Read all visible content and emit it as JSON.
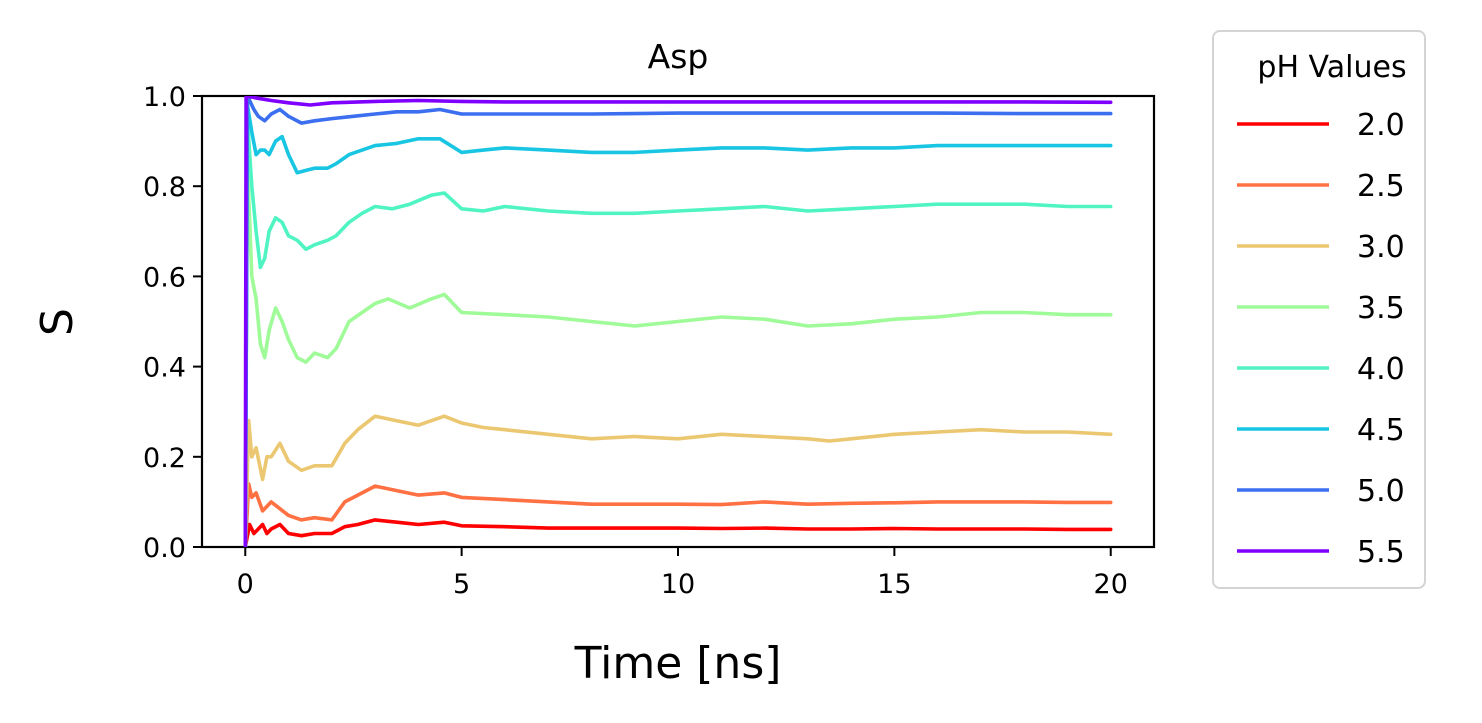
{
  "chart_data": {
    "type": "line",
    "title": "Asp",
    "xlabel": "Time [ns]",
    "ylabel": "S",
    "xlim": [
      -1,
      21
    ],
    "ylim": [
      0.0,
      1.0
    ],
    "xticks": [
      0,
      5,
      10,
      15,
      20
    ],
    "yticks": [
      0.0,
      0.2,
      0.4,
      0.6,
      0.8,
      1.0
    ],
    "xtick_labels": [
      "0",
      "5",
      "10",
      "15",
      "20"
    ],
    "ytick_labels": [
      "0.0",
      "0.2",
      "0.4",
      "0.6",
      "0.8",
      "1.0"
    ],
    "grid": false,
    "legend": {
      "title": "pH Values",
      "placement": "outside-right"
    },
    "series": [
      {
        "name": "2.0",
        "color": "#ff0000",
        "x": [
          0,
          0.1,
          0.2,
          0.3,
          0.4,
          0.5,
          0.6,
          0.8,
          1.0,
          1.3,
          1.6,
          2.0,
          2.3,
          2.6,
          3.0,
          3.5,
          4.0,
          4.6,
          5.0,
          6.0,
          7.0,
          8.0,
          9.0,
          10.0,
          11.0,
          12.0,
          13.0,
          14.0,
          15.0,
          16.0,
          17.0,
          18.0,
          19.0,
          20.0
        ],
        "y": [
          0.0,
          0.05,
          0.03,
          0.04,
          0.05,
          0.03,
          0.04,
          0.05,
          0.03,
          0.025,
          0.03,
          0.03,
          0.045,
          0.05,
          0.06,
          0.055,
          0.05,
          0.055,
          0.047,
          0.045,
          0.042,
          0.042,
          0.042,
          0.042,
          0.041,
          0.042,
          0.04,
          0.04,
          0.041,
          0.04,
          0.04,
          0.04,
          0.039,
          0.039
        ]
      },
      {
        "name": "2.5",
        "color": "#ff7043",
        "x": [
          0,
          0.08,
          0.15,
          0.25,
          0.4,
          0.5,
          0.6,
          0.8,
          1.0,
          1.3,
          1.6,
          2.0,
          2.3,
          2.6,
          3.0,
          3.5,
          4.0,
          4.6,
          5.0,
          6.0,
          7.0,
          8.0,
          9.0,
          10.0,
          11.0,
          12.0,
          13.0,
          14.0,
          15.0,
          16.0,
          17.0,
          18.0,
          19.0,
          20.0
        ],
        "y": [
          0.0,
          0.14,
          0.11,
          0.12,
          0.08,
          0.09,
          0.1,
          0.085,
          0.07,
          0.06,
          0.065,
          0.06,
          0.1,
          0.115,
          0.135,
          0.125,
          0.115,
          0.12,
          0.11,
          0.105,
          0.1,
          0.095,
          0.095,
          0.095,
          0.094,
          0.1,
          0.095,
          0.097,
          0.098,
          0.1,
          0.1,
          0.1,
          0.099,
          0.099
        ]
      },
      {
        "name": "3.0",
        "color": "#ecc771",
        "x": [
          0,
          0.08,
          0.15,
          0.25,
          0.4,
          0.5,
          0.6,
          0.8,
          1.0,
          1.3,
          1.6,
          2.0,
          2.3,
          2.6,
          3.0,
          3.5,
          4.0,
          4.6,
          5.0,
          5.5,
          6.0,
          7.0,
          8.0,
          9.0,
          10.0,
          11.0,
          12.0,
          13.0,
          13.5,
          14.0,
          15.0,
          16.0,
          17.0,
          18.0,
          19.0,
          20.0
        ],
        "y": [
          0.0,
          0.28,
          0.2,
          0.22,
          0.15,
          0.2,
          0.2,
          0.23,
          0.19,
          0.17,
          0.18,
          0.18,
          0.23,
          0.26,
          0.29,
          0.28,
          0.27,
          0.29,
          0.275,
          0.265,
          0.26,
          0.25,
          0.24,
          0.245,
          0.24,
          0.25,
          0.245,
          0.24,
          0.235,
          0.24,
          0.25,
          0.255,
          0.26,
          0.255,
          0.255,
          0.25
        ]
      },
      {
        "name": "3.5",
        "color": "#9ffa98",
        "x": [
          0,
          0.05,
          0.15,
          0.25,
          0.35,
          0.45,
          0.55,
          0.7,
          0.85,
          1.0,
          1.2,
          1.4,
          1.6,
          1.9,
          2.1,
          2.4,
          2.7,
          3.0,
          3.3,
          3.8,
          4.3,
          4.6,
          5.0,
          6.0,
          7.0,
          8.0,
          9.0,
          10.0,
          11.0,
          12.0,
          13.0,
          14.0,
          15.0,
          16.0,
          17.0,
          18.0,
          19.0,
          20.0
        ],
        "y": [
          0.0,
          0.85,
          0.6,
          0.55,
          0.45,
          0.42,
          0.48,
          0.53,
          0.5,
          0.46,
          0.42,
          0.41,
          0.43,
          0.42,
          0.44,
          0.5,
          0.52,
          0.54,
          0.55,
          0.53,
          0.55,
          0.56,
          0.52,
          0.515,
          0.51,
          0.5,
          0.49,
          0.5,
          0.51,
          0.505,
          0.49,
          0.495,
          0.505,
          0.51,
          0.52,
          0.52,
          0.515,
          0.515
        ]
      },
      {
        "name": "4.0",
        "color": "#50f4c2",
        "x": [
          0,
          0.05,
          0.15,
          0.25,
          0.35,
          0.45,
          0.55,
          0.7,
          0.85,
          1.0,
          1.2,
          1.4,
          1.6,
          1.9,
          2.1,
          2.4,
          2.7,
          3.0,
          3.4,
          3.8,
          4.3,
          4.6,
          5.0,
          5.5,
          6.0,
          7.0,
          8.0,
          9.0,
          10.0,
          11.0,
          12.0,
          13.0,
          14.0,
          15.0,
          16.0,
          17.0,
          18.0,
          19.0,
          20.0
        ],
        "y": [
          0.0,
          0.95,
          0.8,
          0.7,
          0.62,
          0.64,
          0.7,
          0.73,
          0.72,
          0.69,
          0.68,
          0.66,
          0.67,
          0.68,
          0.69,
          0.72,
          0.74,
          0.755,
          0.75,
          0.76,
          0.78,
          0.785,
          0.75,
          0.745,
          0.755,
          0.745,
          0.74,
          0.74,
          0.745,
          0.75,
          0.755,
          0.745,
          0.75,
          0.755,
          0.76,
          0.76,
          0.76,
          0.755,
          0.755
        ]
      },
      {
        "name": "4.5",
        "color": "#18c5e2",
        "x": [
          0,
          0.05,
          0.15,
          0.25,
          0.35,
          0.45,
          0.55,
          0.7,
          0.85,
          1.0,
          1.2,
          1.4,
          1.6,
          1.9,
          2.1,
          2.4,
          2.7,
          3.0,
          3.5,
          4.0,
          4.5,
          5.0,
          5.5,
          6.0,
          7.0,
          8.0,
          9.0,
          10.0,
          11.0,
          12.0,
          13.0,
          14.0,
          15.0,
          16.0,
          17.0,
          18.0,
          19.0,
          20.0
        ],
        "y": [
          0.0,
          0.98,
          0.92,
          0.87,
          0.88,
          0.88,
          0.87,
          0.9,
          0.91,
          0.87,
          0.83,
          0.835,
          0.84,
          0.84,
          0.85,
          0.87,
          0.88,
          0.89,
          0.895,
          0.905,
          0.905,
          0.875,
          0.88,
          0.885,
          0.88,
          0.875,
          0.875,
          0.88,
          0.885,
          0.885,
          0.88,
          0.885,
          0.885,
          0.89,
          0.89,
          0.89,
          0.89,
          0.89
        ]
      },
      {
        "name": "5.0",
        "color": "#3b6ff0",
        "x": [
          0,
          0.05,
          0.2,
          0.3,
          0.45,
          0.6,
          0.8,
          1.0,
          1.3,
          1.6,
          2.0,
          2.5,
          3.0,
          3.5,
          4.0,
          4.5,
          5.0,
          6.0,
          7.0,
          8.0,
          9.0,
          10.0,
          12.0,
          14.0,
          16.0,
          18.0,
          20.0
        ],
        "y": [
          0.0,
          1.0,
          0.97,
          0.955,
          0.945,
          0.96,
          0.97,
          0.955,
          0.94,
          0.945,
          0.95,
          0.955,
          0.96,
          0.965,
          0.965,
          0.97,
          0.96,
          0.96,
          0.96,
          0.96,
          0.961,
          0.962,
          0.962,
          0.962,
          0.962,
          0.961,
          0.961
        ]
      },
      {
        "name": "5.5",
        "color": "#8000ff",
        "x": [
          0,
          0.02,
          0.3,
          0.6,
          1.0,
          1.5,
          2.0,
          3.0,
          4.0,
          5.0,
          6.0,
          8.0,
          10.0,
          12.0,
          14.0,
          16.0,
          18.0,
          20.0
        ],
        "y": [
          0.0,
          1.0,
          0.995,
          0.99,
          0.985,
          0.98,
          0.985,
          0.988,
          0.99,
          0.988,
          0.987,
          0.987,
          0.987,
          0.987,
          0.987,
          0.987,
          0.987,
          0.986
        ]
      }
    ]
  }
}
